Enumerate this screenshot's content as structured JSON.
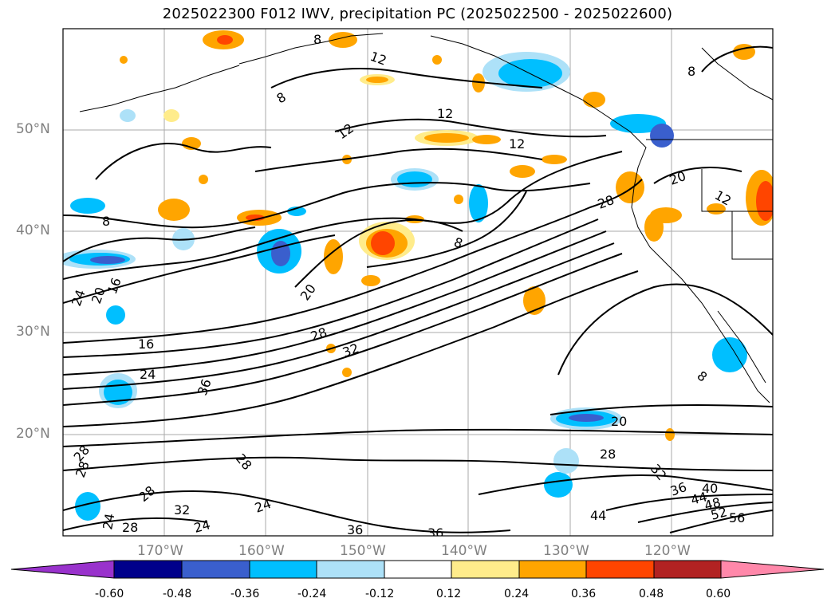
{
  "title": "2025022300 F012 IWV, precipitation PC (2025022500 - 2025022600)",
  "lat_labels": [
    "50°N",
    "40°N",
    "30°N",
    "20°N"
  ],
  "lon_labels": [
    "170°W",
    "160°W",
    "150°W",
    "140°W",
    "130°W",
    "120°W"
  ],
  "contour_labels": [
    "8",
    "12",
    "12",
    "8",
    "12",
    "12",
    "20",
    "12",
    "28",
    "8",
    "8",
    "16",
    "20",
    "24",
    "20",
    "28",
    "32",
    "16",
    "24",
    "36",
    "20",
    "28",
    "32",
    "36",
    "40",
    "44",
    "48",
    "52",
    "56",
    "44",
    "36",
    "36",
    "28",
    "28",
    "24",
    "24",
    "28",
    "32",
    "28",
    "24",
    "28",
    "8",
    "8"
  ],
  "colorbar": {
    "ticks": [
      "-0.60",
      "-0.48",
      "-0.36",
      "-0.24",
      "-0.12",
      "0.12",
      "0.24",
      "0.36",
      "0.48",
      "0.60"
    ],
    "colors": [
      "#9932CC",
      "#00008B",
      "#3A5FCD",
      "#00BFFF",
      "#ADE1F8",
      "#FFFFFF",
      "#FFEC8B",
      "#FFA500",
      "#FF4500",
      "#B22222",
      "#FF88AA"
    ]
  }
}
